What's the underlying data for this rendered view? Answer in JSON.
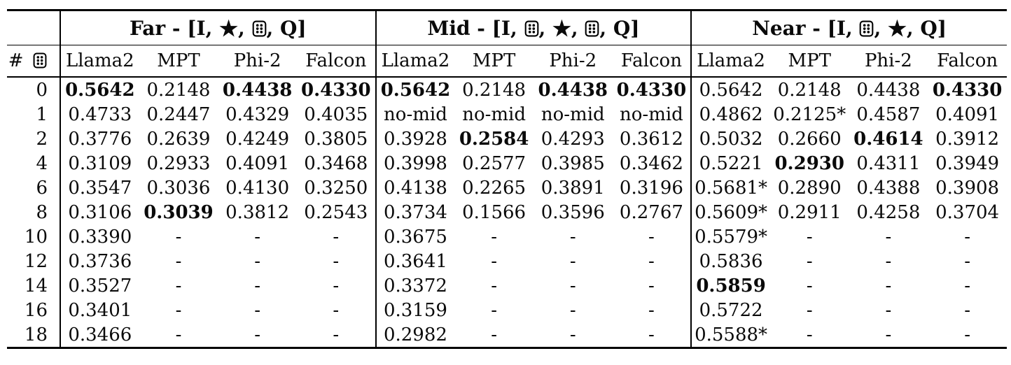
{
  "icons": {
    "star_icon": "★"
  },
  "table": {
    "corner_header": {
      "prefix": "#",
      "icon": "dice-icon"
    },
    "groups": [
      {
        "name": "Far",
        "title_tokens": [
          {
            "text": "Far - [I, "
          },
          {
            "icon": "star-icon"
          },
          {
            "text": ", "
          },
          {
            "icon": "dice-icon"
          },
          {
            "text": ", Q]"
          }
        ],
        "columns": [
          "Llama2",
          "MPT",
          "Phi-2",
          "Falcon"
        ]
      },
      {
        "name": "Mid",
        "title_tokens": [
          {
            "text": "Mid - [I, "
          },
          {
            "icon": "dice-icon"
          },
          {
            "text": ", "
          },
          {
            "icon": "star-icon"
          },
          {
            "text": ", "
          },
          {
            "icon": "dice-icon"
          },
          {
            "text": ", Q]"
          }
        ],
        "columns": [
          "Llama2",
          "MPT",
          "Phi-2",
          "Falcon"
        ]
      },
      {
        "name": "Near",
        "title_tokens": [
          {
            "text": "Near - [I, "
          },
          {
            "icon": "dice-icon"
          },
          {
            "text": ", "
          },
          {
            "icon": "star-icon"
          },
          {
            "text": ", Q]"
          }
        ],
        "columns": [
          "Llama2",
          "MPT",
          "Phi-2",
          "Falcon"
        ]
      }
    ],
    "rows": [
      {
        "num": "0",
        "cells": [
          {
            "v": "0.5642",
            "b": true
          },
          {
            "v": "0.2148"
          },
          {
            "v": "0.4438",
            "b": true
          },
          {
            "v": "0.4330",
            "b": true
          },
          {
            "v": "0.5642",
            "b": true
          },
          {
            "v": "0.2148"
          },
          {
            "v": "0.4438",
            "b": true
          },
          {
            "v": "0.4330",
            "b": true
          },
          {
            "v": "0.5642"
          },
          {
            "v": "0.2148"
          },
          {
            "v": "0.4438"
          },
          {
            "v": "0.4330",
            "b": true
          }
        ]
      },
      {
        "num": "1",
        "cells": [
          {
            "v": "0.4733"
          },
          {
            "v": "0.2447"
          },
          {
            "v": "0.4329"
          },
          {
            "v": "0.4035"
          },
          {
            "v": "no-mid"
          },
          {
            "v": "no-mid"
          },
          {
            "v": "no-mid"
          },
          {
            "v": "no-mid"
          },
          {
            "v": "0.4862"
          },
          {
            "v": "0.2125*"
          },
          {
            "v": "0.4587"
          },
          {
            "v": "0.4091"
          }
        ]
      },
      {
        "num": "2",
        "cells": [
          {
            "v": "0.3776"
          },
          {
            "v": "0.2639"
          },
          {
            "v": "0.4249"
          },
          {
            "v": "0.3805"
          },
          {
            "v": "0.3928"
          },
          {
            "v": "0.2584",
            "b": true
          },
          {
            "v": "0.4293"
          },
          {
            "v": "0.3612"
          },
          {
            "v": "0.5032"
          },
          {
            "v": "0.2660"
          },
          {
            "v": "0.4614",
            "b": true
          },
          {
            "v": "0.3912"
          }
        ]
      },
      {
        "num": "4",
        "cells": [
          {
            "v": "0.3109"
          },
          {
            "v": "0.2933"
          },
          {
            "v": "0.4091"
          },
          {
            "v": "0.3468"
          },
          {
            "v": "0.3998"
          },
          {
            "v": "0.2577"
          },
          {
            "v": "0.3985"
          },
          {
            "v": "0.3462"
          },
          {
            "v": "0.5221"
          },
          {
            "v": "0.2930",
            "b": true
          },
          {
            "v": "0.4311"
          },
          {
            "v": "0.3949"
          }
        ]
      },
      {
        "num": "6",
        "cells": [
          {
            "v": "0.3547"
          },
          {
            "v": "0.3036"
          },
          {
            "v": "0.4130"
          },
          {
            "v": "0.3250"
          },
          {
            "v": "0.4138"
          },
          {
            "v": "0.2265"
          },
          {
            "v": "0.3891"
          },
          {
            "v": "0.3196"
          },
          {
            "v": "0.5681*"
          },
          {
            "v": "0.2890"
          },
          {
            "v": "0.4388"
          },
          {
            "v": "0.3908"
          }
        ]
      },
      {
        "num": "8",
        "cells": [
          {
            "v": "0.3106"
          },
          {
            "v": "0.3039",
            "b": true
          },
          {
            "v": "0.3812"
          },
          {
            "v": "0.2543"
          },
          {
            "v": "0.3734"
          },
          {
            "v": "0.1566"
          },
          {
            "v": "0.3596"
          },
          {
            "v": "0.2767"
          },
          {
            "v": "0.5609*"
          },
          {
            "v": "0.2911"
          },
          {
            "v": "0.4258"
          },
          {
            "v": "0.3704"
          }
        ]
      },
      {
        "num": "10",
        "cells": [
          {
            "v": "0.3390"
          },
          {
            "v": "-"
          },
          {
            "v": "-"
          },
          {
            "v": "-"
          },
          {
            "v": "0.3675"
          },
          {
            "v": "-"
          },
          {
            "v": "-"
          },
          {
            "v": "-"
          },
          {
            "v": "0.5579*"
          },
          {
            "v": "-"
          },
          {
            "v": "-"
          },
          {
            "v": "-"
          }
        ]
      },
      {
        "num": "12",
        "cells": [
          {
            "v": "0.3736"
          },
          {
            "v": "-"
          },
          {
            "v": "-"
          },
          {
            "v": "-"
          },
          {
            "v": "0.3641"
          },
          {
            "v": "-"
          },
          {
            "v": "-"
          },
          {
            "v": "-"
          },
          {
            "v": "0.5836"
          },
          {
            "v": "-"
          },
          {
            "v": "-"
          },
          {
            "v": "-"
          }
        ]
      },
      {
        "num": "14",
        "cells": [
          {
            "v": "0.3527"
          },
          {
            "v": "-"
          },
          {
            "v": "-"
          },
          {
            "v": "-"
          },
          {
            "v": "0.3372"
          },
          {
            "v": "-"
          },
          {
            "v": "-"
          },
          {
            "v": "-"
          },
          {
            "v": "0.5859",
            "b": true
          },
          {
            "v": "-"
          },
          {
            "v": "-"
          },
          {
            "v": "-"
          }
        ]
      },
      {
        "num": "16",
        "cells": [
          {
            "v": "0.3401"
          },
          {
            "v": "-"
          },
          {
            "v": "-"
          },
          {
            "v": "-"
          },
          {
            "v": "0.3159"
          },
          {
            "v": "-"
          },
          {
            "v": "-"
          },
          {
            "v": "-"
          },
          {
            "v": "0.5722"
          },
          {
            "v": "-"
          },
          {
            "v": "-"
          },
          {
            "v": "-"
          }
        ]
      },
      {
        "num": "18",
        "cells": [
          {
            "v": "0.3466"
          },
          {
            "v": "-"
          },
          {
            "v": "-"
          },
          {
            "v": "-"
          },
          {
            "v": "0.2982"
          },
          {
            "v": "-"
          },
          {
            "v": "-"
          },
          {
            "v": "-"
          },
          {
            "v": "0.5588*"
          },
          {
            "v": "-"
          },
          {
            "v": "-"
          },
          {
            "v": "-"
          }
        ]
      }
    ]
  }
}
